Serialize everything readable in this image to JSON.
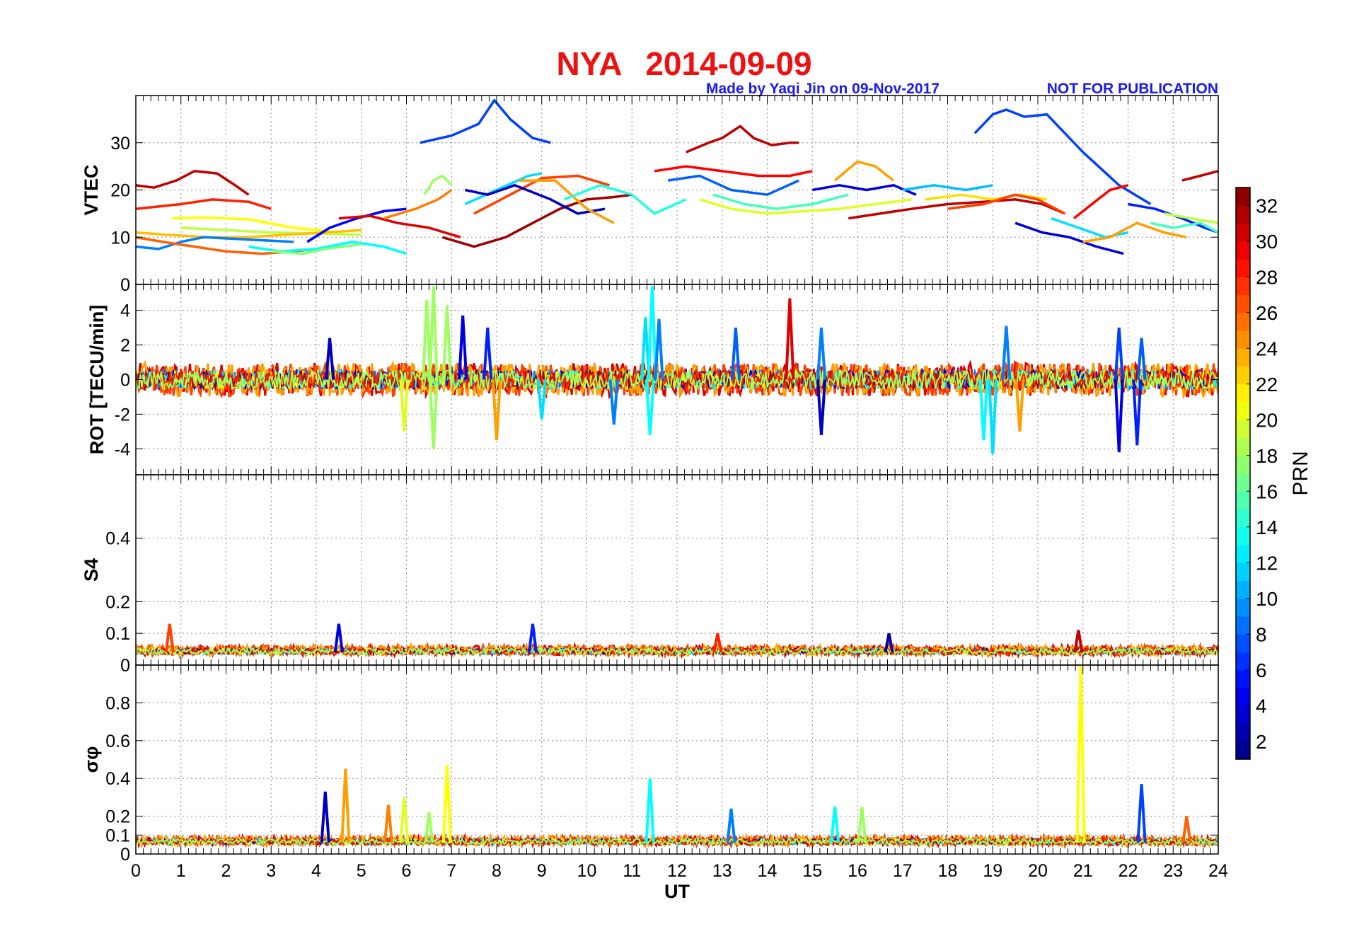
{
  "title": {
    "station": "NYA",
    "date": "2014-09-09",
    "color": "#ee1111"
  },
  "credits": {
    "made_by": "Made by Yaqi Jin on 09-Nov-2017",
    "notice": "NOT FOR PUBLICATION",
    "color": "#1a1aee"
  },
  "colorbar": {
    "label": "PRN",
    "ticks": [
      "2",
      "4",
      "6",
      "8",
      "10",
      "12",
      "14",
      "16",
      "18",
      "20",
      "22",
      "24",
      "26",
      "28",
      "30",
      "32"
    ],
    "range": [
      1,
      33
    ],
    "colormap": "jet"
  },
  "chart_data": [
    {
      "type": "line",
      "name": "vtec",
      "ylabel": "VTEC",
      "xlabel": "",
      "xlim": [
        0,
        24
      ],
      "ylim": [
        0,
        40
      ],
      "yticks": [
        "0",
        "10",
        "20",
        "30"
      ],
      "grid": true,
      "series": [
        {
          "prn": 7,
          "x": [
            6.3,
            7.0,
            7.6,
            7.95,
            8.3,
            8.8,
            9.2
          ],
          "y": [
            30,
            31.5,
            34,
            39,
            35,
            31,
            30
          ]
        },
        {
          "prn": 31,
          "x": [
            12.2,
            12.7,
            13.0,
            13.4,
            13.7,
            14.1,
            14.5,
            14.7
          ],
          "y": [
            28,
            30,
            31,
            33.5,
            31,
            29.5,
            30,
            30
          ]
        },
        {
          "prn": 7,
          "x": [
            18.6,
            19.0,
            19.3,
            19.7,
            20.2,
            20.5,
            21.0,
            21.8,
            22.5
          ],
          "y": [
            32,
            36,
            37,
            35.5,
            36,
            33,
            28,
            21,
            17
          ]
        },
        {
          "prn": 31,
          "x": [
            0,
            0.4,
            0.9,
            1.3,
            1.8,
            2.2,
            2.5
          ],
          "y": [
            21,
            20.5,
            22,
            24,
            23.5,
            21,
            19
          ]
        },
        {
          "prn": 31,
          "x": [
            23.2,
            23.6,
            24
          ],
          "y": [
            22,
            23,
            24
          ]
        },
        {
          "prn": 28,
          "x": [
            0,
            0.5,
            1.0,
            1.7,
            2.5,
            3.0
          ],
          "y": [
            16,
            16.5,
            17,
            18,
            17.5,
            16
          ]
        },
        {
          "prn": 21,
          "x": [
            0.8,
            1.5,
            2.5,
            3.5,
            4.5
          ],
          "y": [
            14,
            14.2,
            13.8,
            12,
            11
          ]
        },
        {
          "prn": 19,
          "x": [
            1.0,
            2.0,
            3.0,
            4.0,
            5.0
          ],
          "y": [
            12,
            11.5,
            11,
            10.8,
            10.5
          ]
        },
        {
          "prn": 23,
          "x": [
            0,
            0.7,
            1.6,
            2.5,
            3.3,
            4.2,
            5.0
          ],
          "y": [
            11,
            10.5,
            10,
            10,
            10.5,
            11,
            11.5
          ]
        },
        {
          "prn": 9,
          "x": [
            0,
            0.5,
            1.0,
            1.5,
            2.5,
            3.5
          ],
          "y": [
            8,
            7.5,
            9,
            10,
            9.5,
            9
          ]
        },
        {
          "prn": 26,
          "x": [
            0,
            0.6,
            1.3,
            2.0,
            2.8,
            3.5,
            4.5
          ],
          "y": [
            10,
            9,
            8,
            7,
            6.5,
            7,
            8
          ]
        },
        {
          "prn": 13,
          "x": [
            2.5,
            3.2,
            4.0,
            4.8,
            5.5,
            6.0
          ],
          "y": [
            8,
            7,
            7.5,
            9,
            8,
            6.5
          ]
        },
        {
          "prn": 17,
          "x": [
            3.0,
            3.7,
            4.2,
            5.0
          ],
          "y": [
            7,
            6.5,
            7.5,
            8.5
          ]
        },
        {
          "prn": 5,
          "x": [
            3.8,
            4.3,
            4.9,
            5.5,
            6.0
          ],
          "y": [
            9,
            12,
            14,
            15.5,
            16
          ]
        },
        {
          "prn": 30,
          "x": [
            4.5,
            5.2,
            5.8,
            6.5,
            7.2
          ],
          "y": [
            14,
            14.5,
            13,
            12,
            10
          ]
        },
        {
          "prn": 25,
          "x": [
            5.5,
            6.2,
            6.7,
            7.0
          ],
          "y": [
            14,
            16,
            18,
            20
          ]
        },
        {
          "prn": 18,
          "x": [
            6.4,
            6.6,
            6.8,
            7.0
          ],
          "y": [
            19,
            22,
            23,
            21
          ]
        },
        {
          "prn": 32,
          "x": [
            6.8,
            7.5,
            8.2,
            8.8,
            9.4,
            10.0,
            10.6,
            11.0
          ],
          "y": [
            10,
            8,
            10,
            13,
            16,
            18,
            18.5,
            19
          ]
        },
        {
          "prn": 12,
          "x": [
            7.3,
            8.0,
            8.7,
            9.0
          ],
          "y": [
            17,
            20,
            23,
            23.5
          ]
        },
        {
          "prn": 27,
          "x": [
            7.5,
            8.3,
            9.0,
            9.8,
            10.5
          ],
          "y": [
            15,
            19,
            22.5,
            23,
            21
          ]
        },
        {
          "prn": 3,
          "x": [
            7.3,
            7.8,
            8.4,
            9.2,
            9.8,
            10.4
          ],
          "y": [
            20,
            19,
            21,
            18,
            15,
            16
          ]
        },
        {
          "prn": 24,
          "x": [
            8.5,
            9.3,
            10.0,
            10.6
          ],
          "y": [
            22,
            22,
            16,
            13
          ]
        },
        {
          "prn": 14,
          "x": [
            9.5,
            10.3,
            11.0,
            11.5,
            12.2
          ],
          "y": [
            18,
            21,
            19,
            15,
            18
          ]
        },
        {
          "prn": 29,
          "x": [
            11.5,
            12.2,
            13.0,
            13.8,
            14.5,
            15.0
          ],
          "y": [
            24,
            25,
            24,
            23,
            23,
            24
          ]
        },
        {
          "prn": 8,
          "x": [
            11.8,
            12.5,
            13.2,
            14.0,
            14.7
          ],
          "y": [
            22,
            23,
            20,
            19,
            22
          ]
        },
        {
          "prn": 20,
          "x": [
            12.5,
            13.2,
            14.0,
            14.8,
            15.6,
            16.4,
            17.2
          ],
          "y": [
            18,
            16,
            15,
            15.5,
            16,
            17,
            18
          ]
        },
        {
          "prn": 15,
          "x": [
            12.8,
            13.5,
            14.2,
            15.0,
            15.8
          ],
          "y": [
            19,
            17,
            16,
            17,
            19
          ]
        },
        {
          "prn": 4,
          "x": [
            15.0,
            15.6,
            16.2,
            16.8,
            17.3
          ],
          "y": [
            20,
            21,
            20,
            21,
            19
          ]
        },
        {
          "prn": 24,
          "x": [
            15.5,
            16.0,
            16.4,
            16.8
          ],
          "y": [
            22,
            26,
            25,
            22
          ]
        },
        {
          "prn": 31,
          "x": [
            15.8,
            16.5,
            17.2,
            18.0,
            18.8,
            19.5,
            20.1,
            20.6
          ],
          "y": [
            14,
            15,
            16,
            17,
            17.5,
            18,
            17,
            15
          ]
        },
        {
          "prn": 11,
          "x": [
            17.0,
            17.7,
            18.4,
            19.0
          ],
          "y": [
            20,
            21,
            20,
            21
          ]
        },
        {
          "prn": 22,
          "x": [
            17.5,
            18.3,
            19.0,
            19.6,
            20.2
          ],
          "y": [
            18,
            19,
            18,
            19,
            18
          ]
        },
        {
          "prn": 27,
          "x": [
            18.0,
            18.8,
            19.5,
            20.0,
            20.6
          ],
          "y": [
            16,
            17,
            19,
            18,
            15
          ]
        },
        {
          "prn": 4,
          "x": [
            19.5,
            20.1,
            20.7,
            21.3,
            21.9
          ],
          "y": [
            13,
            11,
            10,
            8,
            6.5
          ]
        },
        {
          "prn": 12,
          "x": [
            20.3,
            20.9,
            21.5,
            22.0
          ],
          "y": [
            14,
            12,
            10,
            11
          ]
        },
        {
          "prn": 29,
          "x": [
            20.8,
            21.2,
            21.6,
            22.0
          ],
          "y": [
            14,
            17,
            20,
            21
          ]
        },
        {
          "prn": 24,
          "x": [
            21.0,
            21.6,
            22.2,
            22.8,
            23.3
          ],
          "y": [
            9,
            10,
            13,
            11,
            10
          ]
        },
        {
          "prn": 6,
          "x": [
            22.0,
            22.6,
            23.2,
            23.7,
            24
          ],
          "y": [
            17,
            16,
            14,
            12,
            11
          ]
        },
        {
          "prn": 15,
          "x": [
            22.5,
            23.0,
            23.6,
            24
          ],
          "y": [
            13,
            12,
            13,
            11
          ]
        },
        {
          "prn": 19,
          "x": [
            22.8,
            23.4,
            24
          ],
          "y": [
            15,
            14,
            13
          ]
        }
      ]
    },
    {
      "type": "line",
      "name": "rot",
      "ylabel": "ROT [TECU/min]",
      "xlabel": "",
      "xlim": [
        0,
        24
      ],
      "ylim": [
        -5.5,
        5.5
      ],
      "yticks": [
        "-4",
        "-2",
        "0",
        "2",
        "4"
      ],
      "grid": true,
      "spikes": [
        {
          "prn": 18,
          "x": 6.45,
          "y": 4.6
        },
        {
          "prn": 18,
          "x": 6.6,
          "y": 5.4
        },
        {
          "prn": 18,
          "x": 6.6,
          "y": -4.0
        },
        {
          "prn": 20,
          "x": 5.95,
          "y": -3.0
        },
        {
          "prn": 18,
          "x": 6.9,
          "y": 4.3
        },
        {
          "prn": 4,
          "x": 7.25,
          "y": 3.7
        },
        {
          "prn": 6,
          "x": 7.8,
          "y": 3.0
        },
        {
          "prn": 24,
          "x": 8.0,
          "y": -3.5
        },
        {
          "prn": 12,
          "x": 11.3,
          "y": 3.6
        },
        {
          "prn": 13,
          "x": 11.45,
          "y": 5.4
        },
        {
          "prn": 13,
          "x": 11.4,
          "y": -3.2
        },
        {
          "prn": 9,
          "x": 11.6,
          "y": 3.5
        },
        {
          "prn": 8,
          "x": 13.3,
          "y": 3.0
        },
        {
          "prn": 30,
          "x": 14.5,
          "y": 4.7
        },
        {
          "prn": 3,
          "x": 15.2,
          "y": -3.2
        },
        {
          "prn": 9,
          "x": 15.2,
          "y": 3.0
        },
        {
          "prn": 12,
          "x": 19.0,
          "y": -4.3
        },
        {
          "prn": 13,
          "x": 18.8,
          "y": -3.5
        },
        {
          "prn": 9,
          "x": 19.3,
          "y": 3.1
        },
        {
          "prn": 24,
          "x": 19.6,
          "y": -3.0
        },
        {
          "prn": 4,
          "x": 21.8,
          "y": -4.2
        },
        {
          "prn": 7,
          "x": 21.8,
          "y": 3.0
        },
        {
          "prn": 6,
          "x": 22.2,
          "y": -3.8
        },
        {
          "prn": 8,
          "x": 22.3,
          "y": 2.4
        },
        {
          "prn": 3,
          "x": 4.3,
          "y": 2.4
        },
        {
          "prn": 9,
          "x": 10.6,
          "y": -2.6
        },
        {
          "prn": 12,
          "x": 9.0,
          "y": -2.3
        }
      ],
      "noise_band": {
        "x_range": [
          0,
          24
        ],
        "amplitude": 0.8
      }
    },
    {
      "type": "line",
      "name": "s4",
      "ylabel": "S4",
      "xlabel": "",
      "xlim": [
        0,
        24
      ],
      "ylim": [
        0,
        0.6
      ],
      "yticks": [
        "0",
        "0.1",
        "0.2",
        "0.4"
      ],
      "grid": true,
      "spikes": [
        {
          "prn": 27,
          "x": 0.75,
          "y": 0.13
        },
        {
          "prn": 4,
          "x": 4.5,
          "y": 0.13
        },
        {
          "prn": 6,
          "x": 8.8,
          "y": 0.13
        },
        {
          "prn": 28,
          "x": 12.9,
          "y": 0.1
        },
        {
          "prn": 2,
          "x": 16.7,
          "y": 0.1
        },
        {
          "prn": 31,
          "x": 20.9,
          "y": 0.11
        }
      ],
      "noise_band": {
        "x_range": [
          0,
          24
        ],
        "baseline": 0.04,
        "amplitude": 0.025
      }
    },
    {
      "type": "line",
      "name": "sigma_phi",
      "ylabel": "σφ",
      "xlabel": "UT",
      "xlim": [
        0,
        24
      ],
      "xticks": [
        "0",
        "1",
        "2",
        "3",
        "4",
        "5",
        "6",
        "7",
        "8",
        "9",
        "10",
        "11",
        "12",
        "13",
        "14",
        "15",
        "16",
        "17",
        "18",
        "19",
        "20",
        "21",
        "22",
        "23",
        "24"
      ],
      "ylim": [
        0,
        1
      ],
      "yticks": [
        "0",
        "0.1",
        "0.2",
        "0.4",
        "0.6",
        "0.8"
      ],
      "grid": true,
      "spikes": [
        {
          "prn": 3,
          "x": 4.2,
          "y": 0.33
        },
        {
          "prn": 24,
          "x": 4.65,
          "y": 0.45
        },
        {
          "prn": 25,
          "x": 5.6,
          "y": 0.26
        },
        {
          "prn": 20,
          "x": 5.95,
          "y": 0.3
        },
        {
          "prn": 18,
          "x": 6.5,
          "y": 0.22
        },
        {
          "prn": 21,
          "x": 6.9,
          "y": 0.47
        },
        {
          "prn": 13,
          "x": 11.4,
          "y": 0.4
        },
        {
          "prn": 9,
          "x": 13.2,
          "y": 0.24
        },
        {
          "prn": 13,
          "x": 15.5,
          "y": 0.25
        },
        {
          "prn": 18,
          "x": 16.1,
          "y": 0.25
        },
        {
          "prn": 21,
          "x": 20.95,
          "y": 1.0
        },
        {
          "prn": 7,
          "x": 22.3,
          "y": 0.37
        },
        {
          "prn": 26,
          "x": 23.3,
          "y": 0.2
        }
      ],
      "noise_band": {
        "x_range": [
          0,
          24
        ],
        "baseline": 0.06,
        "amplitude": 0.04
      }
    }
  ]
}
